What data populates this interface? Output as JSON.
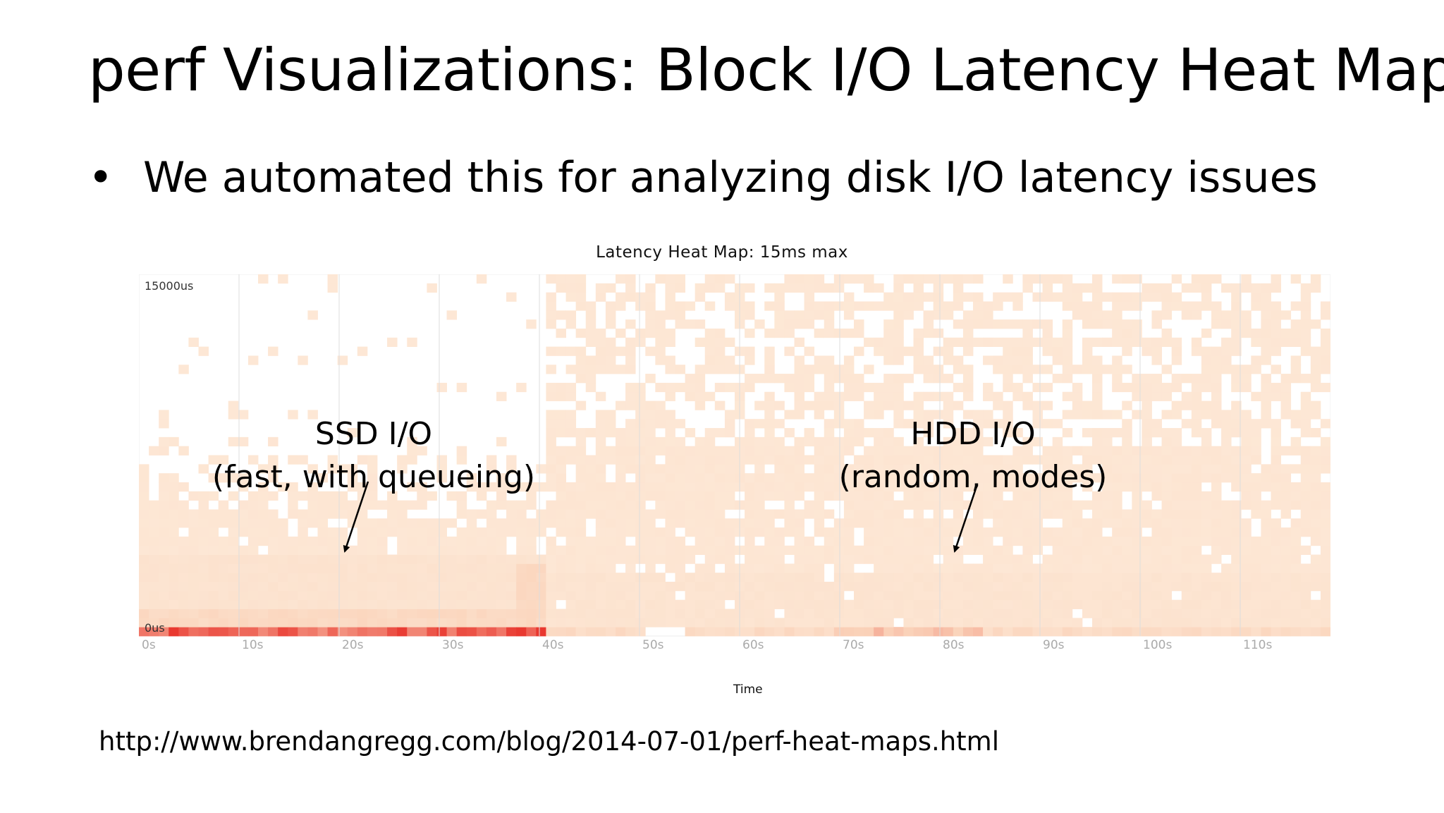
{
  "slide": {
    "title": "perf Visualizations: Block I/O Latency Heat Map",
    "bullet_symbol": "•",
    "bullet_text": "We automated this for analyzing disk I/O latency issues",
    "url": "http://www.brendangregg.com/blog/2014-07-01/perf-heat-maps.html"
  },
  "annotations": {
    "ssd": [
      "SSD I/O",
      "(fast, with queueing)"
    ],
    "hdd": [
      "HDD I/O",
      "(random, modes)"
    ]
  },
  "chart_data": {
    "type": "heatmap",
    "title": "Latency Heat Map: 15ms max",
    "xlabel": "Time",
    "ylabel": "",
    "x_ticks": [
      "0s",
      "10s",
      "20s",
      "30s",
      "40s",
      "50s",
      "60s",
      "70s",
      "80s",
      "90s",
      "100s",
      "110s"
    ],
    "y_ticks": [
      "15000us",
      "0us"
    ],
    "xlim": [
      0,
      119
    ],
    "ylim": [
      0,
      15000
    ],
    "color_low": "#fde4cf",
    "color_high": "#e8322a",
    "grid": true,
    "regions": [
      {
        "label": "SSD I/O",
        "x_range": [
          0,
          41
        ],
        "description_values": {
          "high_density_latency_us": [
            0,
            400
          ],
          "moderate_density_latency_us": [
            0,
            3000
          ],
          "sparse_up_to_us": 15000
        }
      },
      {
        "label": "HDD I/O",
        "x_range": [
          41,
          119
        ],
        "description_values": {
          "high_density_latency_us": [
            0,
            300
          ],
          "moderate_density_latency_us": [
            0,
            8000
          ],
          "sparse_up_to_us": 15000
        }
      }
    ]
  }
}
